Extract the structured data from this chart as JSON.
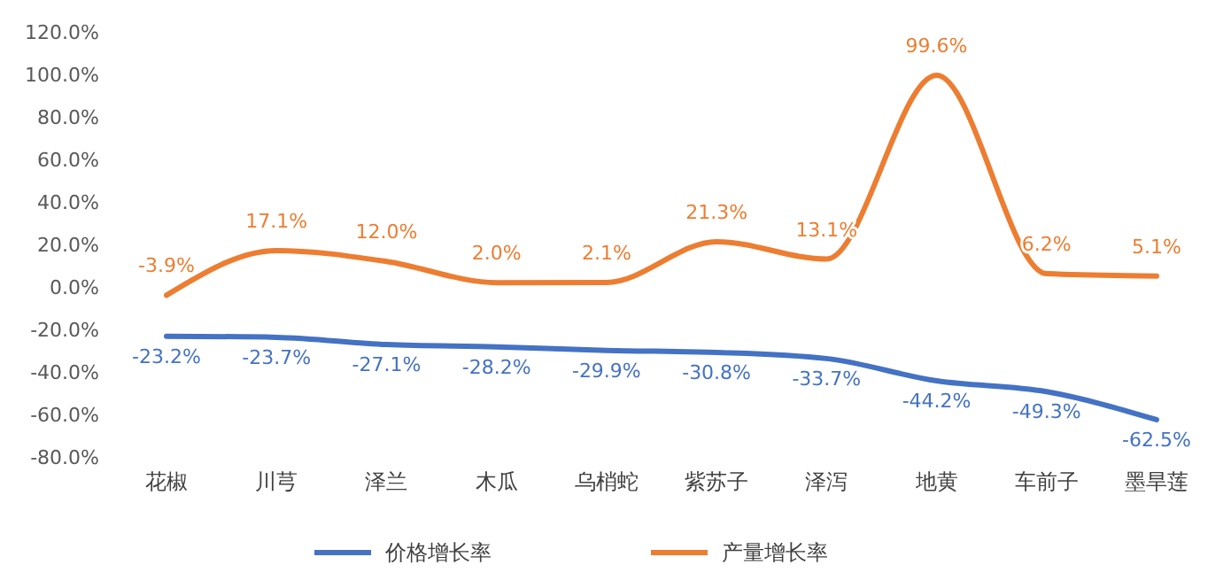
{
  "chart_data": {
    "type": "line",
    "categories": [
      "花椒",
      "川芎",
      "泽兰",
      "木瓜",
      "乌梢蛇",
      "紫苏子",
      "泽泻",
      "地黄",
      "车前子",
      "墨旱莲"
    ],
    "ylim": [
      -80,
      120
    ],
    "yticks": [
      {
        "value": -80,
        "label": "-80.0%"
      },
      {
        "value": -60,
        "label": "-60.0%"
      },
      {
        "value": -40,
        "label": "-40.0%"
      },
      {
        "value": -20,
        "label": "-20.0%"
      },
      {
        "value": 0,
        "label": "0.0%"
      },
      {
        "value": 20,
        "label": "20.0%"
      },
      {
        "value": 40,
        "label": "40.0%"
      },
      {
        "value": 60,
        "label": "60.0%"
      },
      {
        "value": 80,
        "label": "80.0%"
      },
      {
        "value": 100,
        "label": "100.0%"
      },
      {
        "value": 120,
        "label": "120.0%"
      }
    ],
    "series": [
      {
        "name": "价格增长率",
        "color": "#4472c4",
        "values": [
          -23.2,
          -23.7,
          -27.1,
          -28.2,
          -29.9,
          -30.8,
          -33.7,
          -44.2,
          -49.3,
          -62.5
        ],
        "value_labels": [
          "-23.2%",
          "-23.7%",
          "-27.1%",
          "-28.2%",
          "-29.9%",
          "-30.8%",
          "-33.7%",
          "-44.2%",
          "-49.3%",
          "-62.5%"
        ]
      },
      {
        "name": "产量增长率",
        "color": "#ed7d31",
        "values": [
          -3.9,
          17.1,
          12.0,
          2.0,
          2.1,
          21.3,
          13.1,
          99.6,
          6.2,
          5.1
        ],
        "value_labels": [
          "-3.9%",
          "17.1%",
          "12.0%",
          "2.0%",
          "2.1%",
          "21.3%",
          "13.1%",
          "99.6%",
          "6.2%",
          "5.1%"
        ]
      }
    ],
    "grid": false,
    "legend": "bottom",
    "marker": "none",
    "line_style": "solid"
  }
}
